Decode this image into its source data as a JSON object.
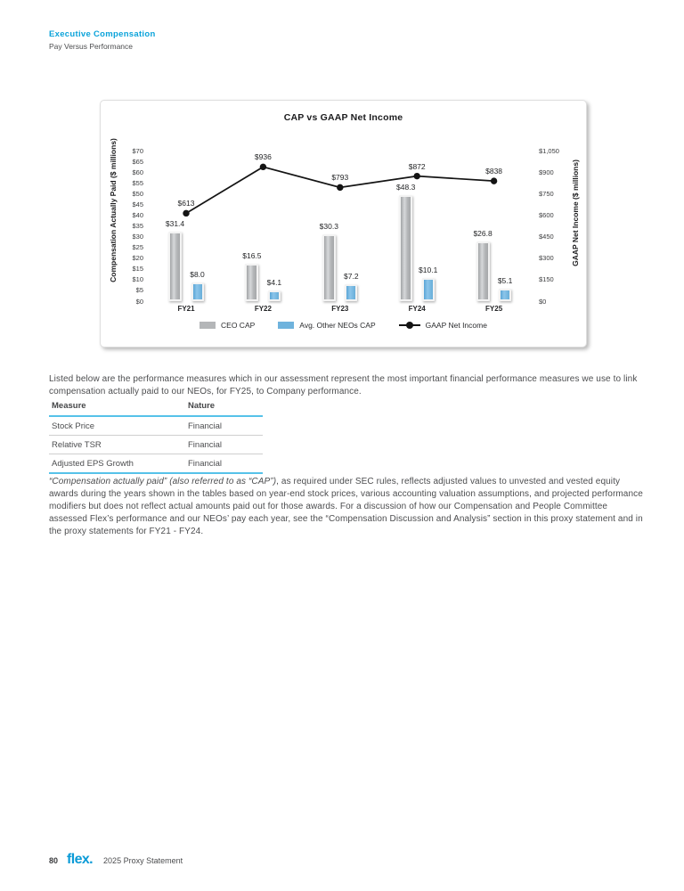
{
  "header": {
    "section": "Executive Compensation",
    "subsection": "Pay Versus Performance"
  },
  "intro": "Listed below are the performance measures which in our assessment represent the most important financial performance measures we use to link compensation actually paid to our NEOs, for FY25, to Company performance.",
  "measures_table": {
    "columns": [
      "Measure",
      "Nature"
    ],
    "rows": [
      [
        "Stock Price",
        "Financial"
      ],
      [
        "Relative TSR",
        "Financial"
      ],
      [
        "Adjusted EPS Growth",
        "Financial"
      ]
    ]
  },
  "cap_paragraph": {
    "italic": "“Compensation actually paid” (also referred to as “CAP”)",
    "rest": ", as required under SEC rules, reflects adjusted values to unvested and vested equity awards during the years shown in the tables based on year-end stock prices, various accounting valuation assumptions, and projected performance modifiers but does not reflect actual amounts paid out for those awards. For a discussion of how our Compensation and People Committee assessed Flex’s performance and our NEOs’ pay each year, see the “Compensation Discussion and Analysis” section in this proxy statement and in the proxy statements for FY21 - FY24."
  },
  "footer": {
    "page_number": "80",
    "logo": "flex.",
    "label": "2025 Proxy Statement"
  },
  "chart_data": {
    "type": "bar+line combo",
    "title": "CAP vs GAAP Net Income",
    "categories": [
      "FY21",
      "FY22",
      "FY23",
      "FY24",
      "FY25"
    ],
    "series": [
      {
        "name": "CEO CAP",
        "type": "bar",
        "axis": "left",
        "color": "#b4b6b8",
        "values": [
          31.4,
          16.5,
          30.3,
          48.3,
          26.8
        ],
        "labels": [
          "$31.4",
          "$16.5",
          "$30.3",
          "$48.3",
          "$26.8"
        ]
      },
      {
        "name": "Avg. Other NEOs CAP",
        "type": "bar",
        "axis": "left",
        "color": "#6fb3dd",
        "values": [
          8.0,
          4.1,
          7.2,
          10.1,
          5.1
        ],
        "labels": [
          "$8.0",
          "$4.1",
          "$7.2",
          "$10.1",
          "$5.1"
        ]
      },
      {
        "name": "GAAP Net Income",
        "type": "line",
        "axis": "right",
        "color": "#141414",
        "values": [
          613,
          936,
          793,
          872,
          838
        ],
        "labels": [
          "$613",
          "$936",
          "$793",
          "$872",
          "$838"
        ]
      }
    ],
    "left_axis": {
      "label": "Compensation Actually Paid ($ millions)",
      "min": 0,
      "max": 70,
      "tick_values": [
        0,
        5,
        10,
        15,
        20,
        25,
        30,
        35,
        40,
        45,
        50,
        55,
        60,
        65,
        70
      ],
      "ticks": [
        "$0",
        "$5",
        "$10",
        "$15",
        "$20",
        "$25",
        "$30",
        "$35",
        "$40",
        "$45",
        "$50",
        "$55",
        "$60",
        "$65",
        "$70"
      ]
    },
    "right_axis": {
      "label": "GAAP Net Income ($ millions)",
      "min": 0,
      "max": 1050,
      "tick_values": [
        0,
        150,
        300,
        450,
        600,
        750,
        900,
        1050
      ],
      "ticks": [
        "$0",
        "$150",
        "$300",
        "$450",
        "$600",
        "$750",
        "$900",
        "$1,050"
      ]
    },
    "legend_position": "bottom",
    "grid": false
  }
}
